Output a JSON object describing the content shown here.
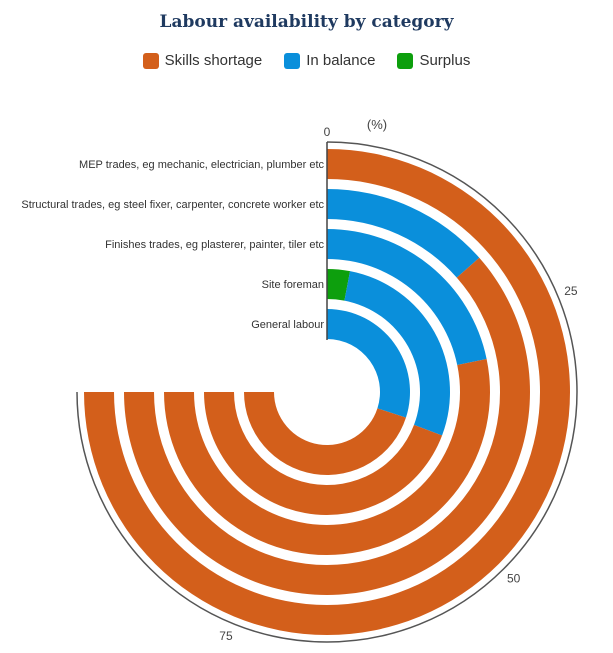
{
  "chart_data": {
    "type": "radial-bar",
    "title": "Labour availability by category",
    "unit_label": "(%)",
    "axis_max": 100,
    "axis_span_degrees": 270,
    "ticks": [
      0,
      25,
      50,
      75
    ],
    "legend": [
      {
        "name": "Skills shortage",
        "color": "#d35f1b"
      },
      {
        "name": "In balance",
        "color": "#0a8fdb"
      },
      {
        "name": "Surplus",
        "color": "#0d9f0d"
      }
    ],
    "categories": [
      "MEP trades, eg mechanic, electrician, plumber etc",
      "Structural trades, eg steel fixer, carpenter, concrete worker etc",
      "Finishes trades, eg plasterer, painter, tiler etc",
      "Site foreman",
      "General labour"
    ],
    "series": [
      {
        "name": "Surplus",
        "color": "#0d9f0d",
        "values": [
          0,
          0,
          0,
          4,
          0
        ]
      },
      {
        "name": "In balance",
        "color": "#0a8fdb",
        "values": [
          0,
          18,
          29,
          37,
          40
        ]
      },
      {
        "name": "Skills shortage",
        "color": "#d35f1b",
        "values": [
          100,
          82,
          71,
          59,
          60
        ]
      }
    ]
  }
}
